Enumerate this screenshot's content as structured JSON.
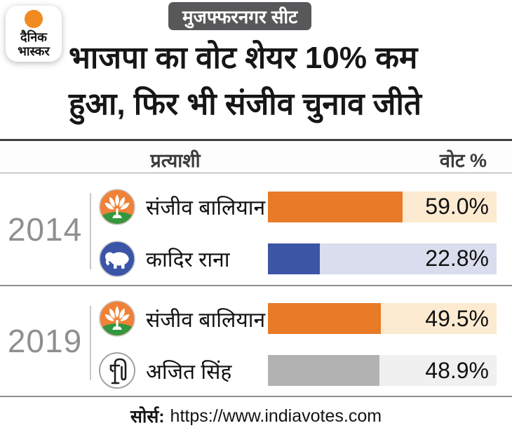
{
  "brand": {
    "name": "दैनिक भास्कर",
    "logo_line1": "दैनिक",
    "logo_line2": "भास्कर",
    "logo_dot_color": "#f18a21"
  },
  "header": {
    "badge": "मुजफ्फरनगर सीट",
    "title_line1": "भाजपा का वोट शेयर 10% कम",
    "title_line2": "हुआ, फिर भी संजीव चुनाव जीते"
  },
  "table": {
    "col_candidate": "प्रत्याशी",
    "col_vote": "वोट %"
  },
  "chart_data": {
    "type": "bar",
    "title": "भाजपा का वोट शेयर 10% कम हुआ, फिर भी संजीव चुनाव जीते",
    "subtitle": "मुजफ्फरनगर सीट",
    "unit": "percent",
    "xlim": [
      0,
      100
    ],
    "grid": false,
    "legend": false,
    "sections": [
      {
        "year": "2014",
        "rows": [
          {
            "name": "संजीव बालियान",
            "party_icon": "bjp-lotus",
            "value": 59.0,
            "label": "59.0%",
            "bar_color": "#e87a28",
            "track_color": "#fcead1"
          },
          {
            "name": "कादिर राना",
            "party_icon": "bsp-elephant",
            "value": 22.8,
            "label": "22.8%",
            "bar_color": "#3d55a5",
            "track_color": "#d9dded"
          }
        ]
      },
      {
        "year": "2019",
        "rows": [
          {
            "name": "संजीव बालियान",
            "party_icon": "bjp-lotus",
            "value": 49.5,
            "label": "49.5%",
            "bar_color": "#e87a28",
            "track_color": "#fcead1"
          },
          {
            "name": "अजित सिंह",
            "party_icon": "rld-handpump",
            "value": 48.9,
            "label": "48.9%",
            "bar_color": "#b2b2b2",
            "track_color": "#f0f0f0"
          }
        ]
      }
    ]
  },
  "footer": {
    "source_label": "सोर्स:",
    "source_url": "https://www.indiavotes.com"
  }
}
